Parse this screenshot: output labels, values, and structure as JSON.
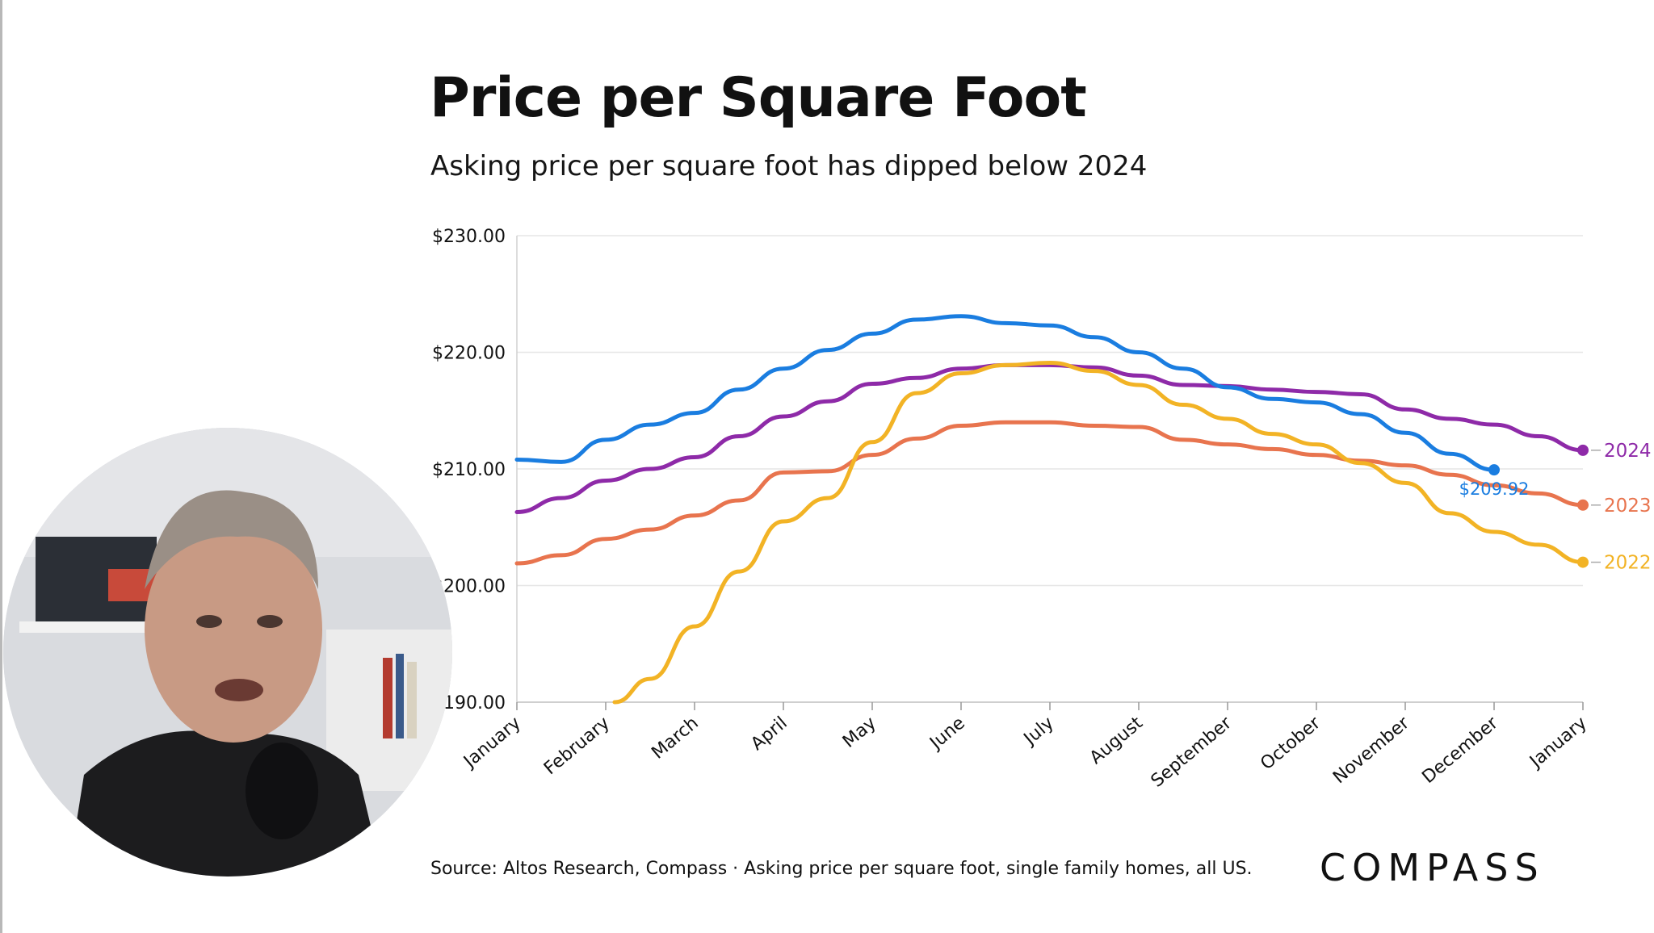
{
  "title": "Price per Square Foot",
  "subtitle": "Asking price per square foot has dipped below 2024",
  "source": "Source: Altos Research, Compass · Asking price per square foot, single family homes, all US.",
  "brand_logo": "COMPASS",
  "chart_data": {
    "type": "line",
    "title": "Price per Square Foot",
    "subtitle": "Asking price per square foot has dipped below 2024",
    "xlabel": "",
    "ylabel": "",
    "x_ticks": [
      "January",
      "February",
      "March",
      "April",
      "May",
      "June",
      "July",
      "August",
      "September",
      "October",
      "November",
      "December",
      "January"
    ],
    "y_ticks": [
      190,
      200,
      210,
      220,
      230
    ],
    "y_tick_labels": [
      "$190.00",
      "$200.00",
      "$210.00",
      "$220.00",
      "$230.00"
    ],
    "ylim": [
      190,
      230
    ],
    "grid": true,
    "legend": "end-of-line labels",
    "series": [
      {
        "name": "2024",
        "color": "#8e2aa8",
        "x": [
          0,
          0.5,
          1,
          1.5,
          2,
          2.5,
          3,
          3.5,
          4,
          4.5,
          5,
          5.5,
          6,
          6.5,
          7,
          7.5,
          8,
          8.5,
          9,
          9.5,
          10,
          10.5,
          11,
          11.5,
          12
        ],
        "y": [
          206.3,
          207.5,
          209.0,
          210.0,
          211.0,
          212.8,
          214.5,
          215.8,
          217.3,
          217.8,
          218.6,
          218.9,
          218.9,
          218.7,
          218.0,
          217.2,
          217.1,
          216.8,
          216.6,
          216.4,
          215.1,
          214.3,
          213.8,
          212.8,
          211.6
        ]
      },
      {
        "name": "2023",
        "color": "#e8744e",
        "x": [
          0,
          0.5,
          1,
          1.5,
          2,
          2.5,
          3,
          3.5,
          4,
          4.5,
          5,
          5.5,
          6,
          6.5,
          7,
          7.5,
          8,
          8.5,
          9,
          9.5,
          10,
          10.5,
          11,
          11.5,
          12
        ],
        "y": [
          201.9,
          202.6,
          204.0,
          204.8,
          206.0,
          207.3,
          209.7,
          209.8,
          211.2,
          212.6,
          213.7,
          214.0,
          214.0,
          213.7,
          213.6,
          212.5,
          212.1,
          211.7,
          211.2,
          210.7,
          210.3,
          209.5,
          208.6,
          207.9,
          206.9
        ]
      },
      {
        "name": "2022",
        "color": "#f2b325",
        "x": [
          1.1,
          1.5,
          2,
          2.5,
          3,
          3.5,
          4,
          4.5,
          5,
          5.5,
          6,
          6.5,
          7,
          7.5,
          8,
          8.5,
          9,
          9.5,
          10,
          10.5,
          11,
          11.5,
          12
        ],
        "y": [
          190.0,
          192.0,
          196.5,
          201.2,
          205.5,
          207.5,
          212.3,
          216.5,
          218.2,
          218.9,
          219.1,
          218.4,
          217.2,
          215.5,
          214.3,
          213.0,
          212.1,
          210.5,
          208.8,
          206.2,
          204.6,
          203.5,
          202.0
        ]
      },
      {
        "name": "",
        "color": "#1a7de0",
        "x": [
          0,
          0.5,
          1,
          1.5,
          2,
          2.5,
          3,
          3.5,
          4,
          4.5,
          5,
          5.5,
          6,
          6.5,
          7,
          7.5,
          8,
          8.5,
          9,
          9.5,
          10,
          10.5,
          11
        ],
        "y": [
          210.8,
          210.6,
          212.5,
          213.8,
          214.8,
          216.8,
          218.6,
          220.2,
          221.6,
          222.8,
          223.1,
          222.5,
          222.3,
          221.3,
          220.0,
          218.6,
          217.0,
          216.0,
          215.7,
          214.7,
          213.1,
          211.3,
          209.92
        ],
        "end_label": "$209.92"
      }
    ]
  }
}
